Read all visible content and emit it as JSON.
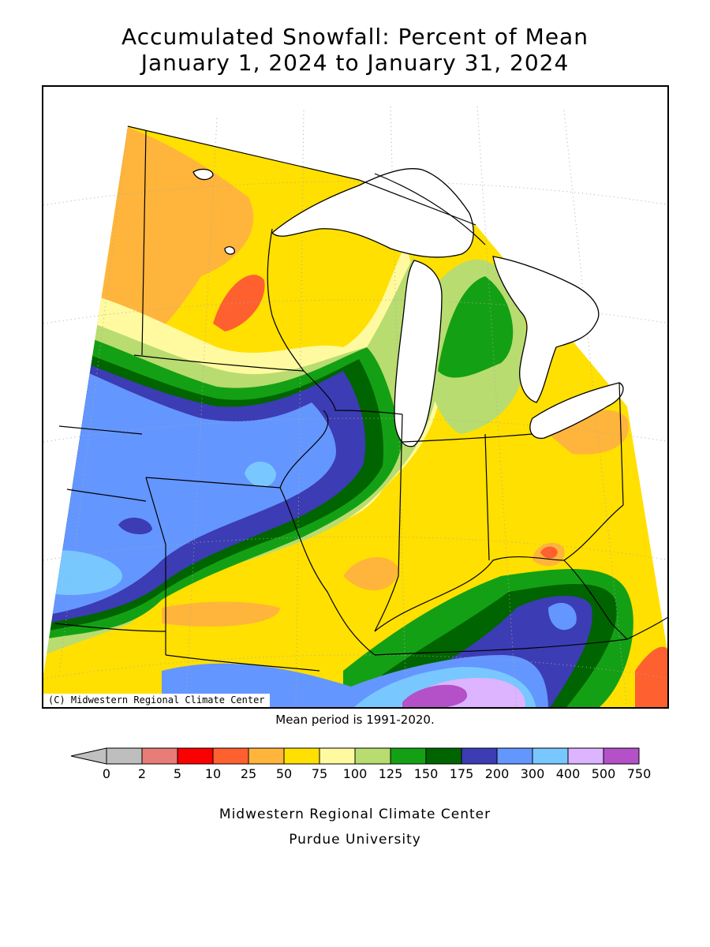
{
  "title": {
    "line1": "Accumulated Snowfall: Percent of Mean",
    "line2": "January 1, 2024 to January 31, 2024"
  },
  "map": {
    "copyright": "(C) Midwestern Regional Climate Center",
    "mean_period": "Mean period is 1991-2020.",
    "colors": {
      "lake": "#ffffff",
      "border": "#000000",
      "grid": "#aaaaaa"
    }
  },
  "legend": {
    "under_color": "#c0c0c0",
    "tick_labels": [
      "0",
      "2",
      "5",
      "10",
      "25",
      "50",
      "75",
      "100",
      "125",
      "150",
      "175",
      "200",
      "300",
      "400",
      "500",
      "750"
    ],
    "colors": [
      "#bebebe",
      "#e87c78",
      "#fa0000",
      "#ff6030",
      "#ffb43c",
      "#ffe000",
      "#fffaa0",
      "#b8dc70",
      "#14a014",
      "#006400",
      "#3c3cb4",
      "#6496ff",
      "#78c8ff",
      "#dcb4ff",
      "#b450c8"
    ]
  },
  "footer": {
    "line1": "Midwestern Regional Climate Center",
    "line2": "Purdue University"
  }
}
